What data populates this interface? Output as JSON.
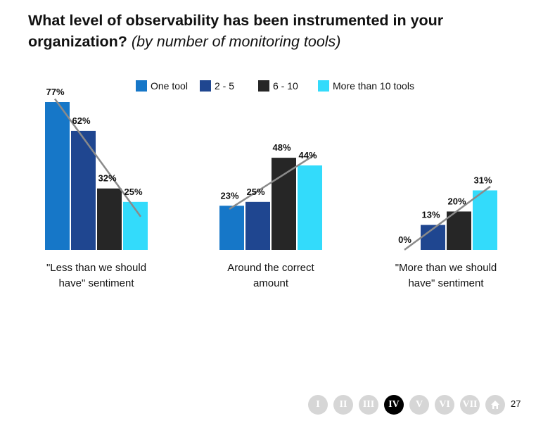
{
  "title": {
    "bold": "What level of observability has been instrumented in your organization?",
    "italic": "(by number of monitoring tools)"
  },
  "chart_data": {
    "type": "bar",
    "title": "What level of observability has been instrumented in your organization? (by number of monitoring tools)",
    "categories": [
      [
        "\"Less than we should",
        "have\" sentiment"
      ],
      [
        "Around the correct",
        "amount"
      ],
      [
        "\"More than we should",
        "have\" sentiment"
      ]
    ],
    "series": [
      {
        "name": "One tool",
        "color": "#1677c8",
        "values": [
          77,
          23,
          0
        ]
      },
      {
        "name": "2 - 5",
        "color": "#1f4690",
        "values": [
          62,
          25,
          13
        ]
      },
      {
        "name": "6 - 10",
        "color": "#262626",
        "values": [
          32,
          48,
          20
        ]
      },
      {
        "name": "More than 10 tools",
        "color": "#33dbfb",
        "values": [
          25,
          44,
          31
        ]
      }
    ],
    "value_suffix": "%",
    "trendline_color": "#8a8a8a",
    "ylim": [
      0,
      77
    ],
    "legend_position": "top",
    "grid": false
  },
  "nav": {
    "items": [
      "I",
      "II",
      "III",
      "IV",
      "V",
      "VI",
      "VII"
    ],
    "active_index": 3,
    "home_icon": "home-icon",
    "page_number": "27"
  }
}
